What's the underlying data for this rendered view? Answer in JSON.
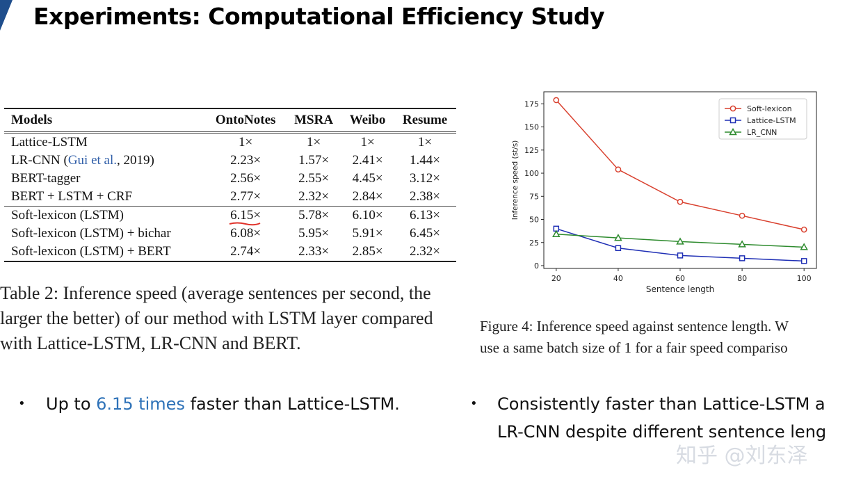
{
  "slide": {
    "title": "Experiments:  Computational Efficiency Study"
  },
  "table": {
    "headers": [
      "Models",
      "OntoNotes",
      "MSRA",
      "Weibo",
      "Resume"
    ],
    "rows": [
      {
        "model": "Lattice-LSTM",
        "cite": "",
        "model_tail": "",
        "values": [
          "1×",
          "1×",
          "1×",
          "1×"
        ]
      },
      {
        "model": "LR-CNN (",
        "cite": "Gui et al.",
        "model_tail": ", 2019)",
        "values": [
          "2.23×",
          "1.57×",
          "2.41×",
          "1.44×"
        ]
      },
      {
        "model": "BERT-tagger",
        "cite": "",
        "model_tail": "",
        "values": [
          "2.56×",
          "2.55×",
          "4.45×",
          "3.12×"
        ]
      },
      {
        "model": "BERT + LSTM + CRF",
        "cite": "",
        "model_tail": "",
        "values": [
          "2.77×",
          "2.32×",
          "2.84×",
          "2.38×"
        ]
      },
      {
        "model": "Soft-lexicon (LSTM)",
        "cite": "",
        "model_tail": "",
        "values": [
          "6.15×",
          "5.78×",
          "6.10×",
          "6.13×"
        ]
      },
      {
        "model": "Soft-lexicon (LSTM) + bichar",
        "cite": "",
        "model_tail": "",
        "values": [
          "6.08×",
          "5.95×",
          "5.91×",
          "6.45×"
        ]
      },
      {
        "model": "Soft-lexicon (LSTM) + BERT",
        "cite": "",
        "model_tail": "",
        "values": [
          "2.74×",
          "2.33×",
          "2.85×",
          "2.32×"
        ]
      }
    ],
    "caption": "Table 2: Inference speed (average sentences per second, the larger the better) of our method with LSTM layer compared with Lattice-LSTM, LR-CNN and BERT."
  },
  "figure": {
    "caption_line1": "Figure 4: Inference speed against sentence length. W",
    "caption_line2": "use a same batch size of 1 for a fair speed compariso"
  },
  "chart_data": {
    "type": "line",
    "title": "",
    "xlabel": "Sentence length",
    "ylabel": "Inference speed (st/s)",
    "x": [
      20,
      40,
      60,
      80,
      100
    ],
    "xticks": [
      "20",
      "40",
      "60",
      "80",
      "100"
    ],
    "yticks": [
      "0",
      "25",
      "50",
      "75",
      "100",
      "125",
      "150",
      "175"
    ],
    "xlim": [
      16,
      104
    ],
    "ylim": [
      -3,
      188
    ],
    "legend_position": "top-right",
    "series": [
      {
        "name": "Soft-lexicon",
        "color": "#d9412f",
        "marker": "circle",
        "values": [
          179,
          104,
          69,
          54,
          39
        ]
      },
      {
        "name": "Lattice-LSTM",
        "color": "#1f2fb5",
        "marker": "square",
        "values": [
          40,
          19,
          11,
          8,
          5
        ]
      },
      {
        "name": "LR_CNN",
        "color": "#2e8b2e",
        "marker": "triangle",
        "values": [
          34,
          30,
          26,
          23,
          20
        ]
      }
    ]
  },
  "bullets": {
    "left_pre": "Up to ",
    "left_highlight": "6.15 times",
    "left_post": " faster than Lattice-LSTM.",
    "right_line1": "Consistently faster than Lattice-LSTM a",
    "right_line2": "LR-CNN despite different sentence leng",
    "bullet_glyph": "•"
  },
  "watermark": {
    "text": "知乎 @刘东泽"
  }
}
